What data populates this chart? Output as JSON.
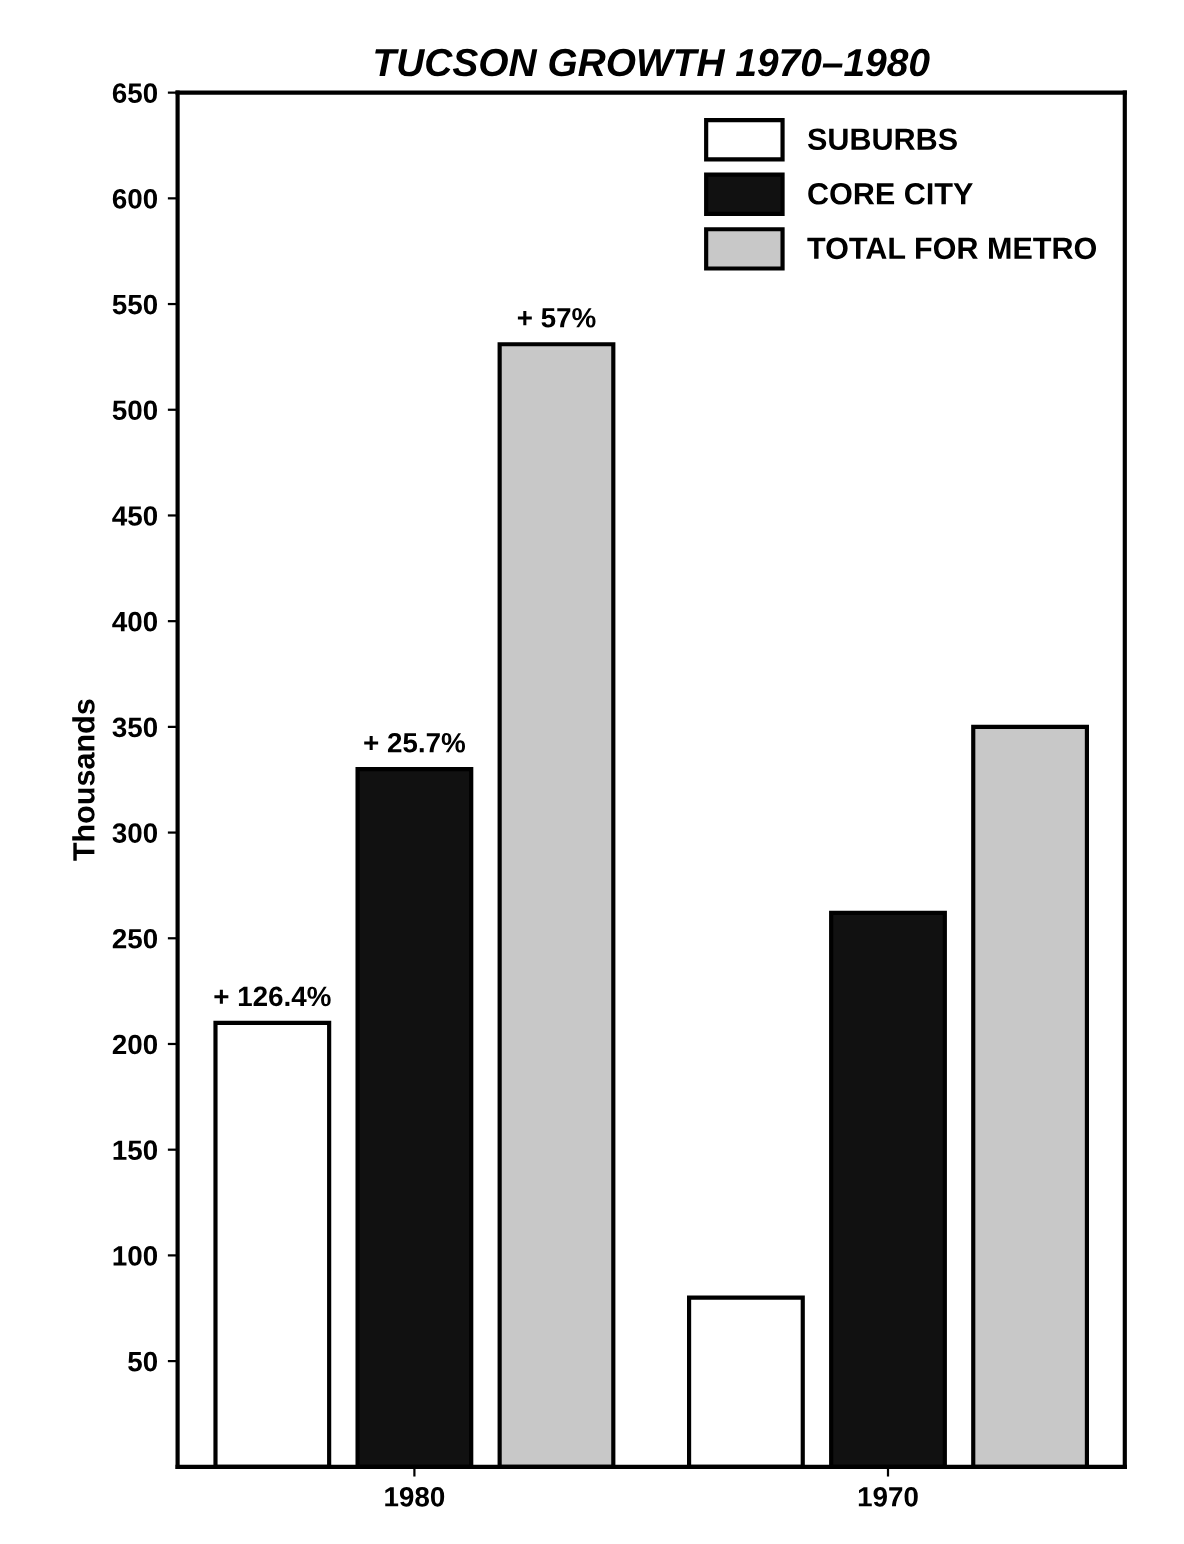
{
  "chart_data": {
    "type": "bar",
    "title": "TUCSON GROWTH 1970–1980",
    "ylabel": "Thousands",
    "categories": [
      "1980",
      "1970"
    ],
    "series": [
      {
        "name": "SUBURBS",
        "color": "#ffffff",
        "values": [
          210,
          80
        ]
      },
      {
        "name": "CORE CITY",
        "color": "#111111",
        "values": [
          330,
          262
        ]
      },
      {
        "name": "TOTAL FOR METRO",
        "color": "#c8c8c8",
        "values": [
          531,
          350
        ]
      }
    ],
    "annotations": [
      "+ 126.4%",
      "+ 25.7%",
      "+ 57%"
    ],
    "ylim": [
      0,
      650
    ],
    "yticks": [
      50,
      100,
      150,
      200,
      250,
      300,
      350,
      400,
      450,
      500,
      550,
      600,
      650
    ],
    "grid": false,
    "legend": "top right"
  }
}
